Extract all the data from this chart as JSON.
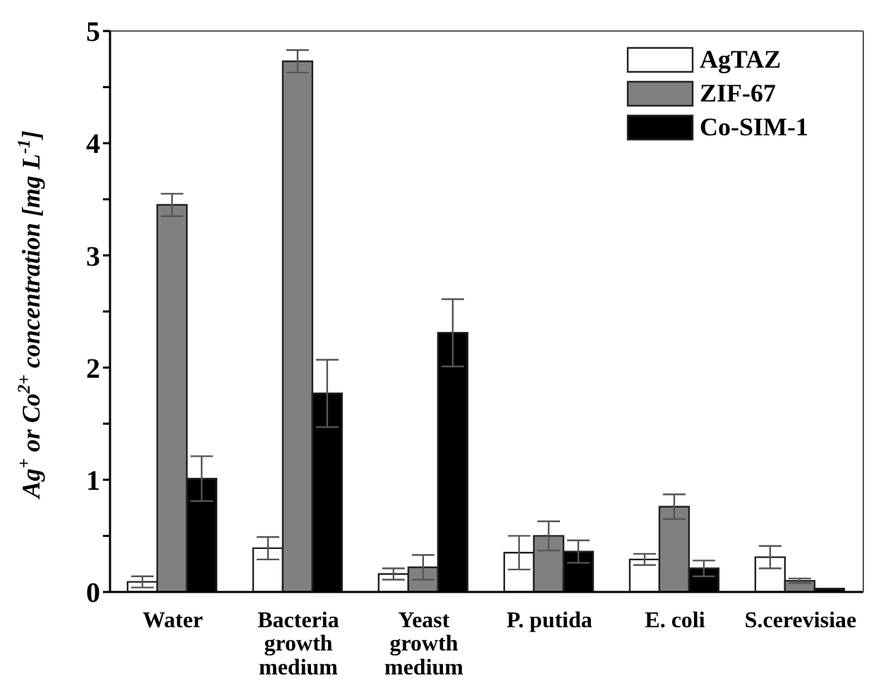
{
  "chart_data": {
    "type": "bar",
    "ylabel": "Ag$^{+}$ or Co$^{2+}$ concentration [mg L$^{-1}$]",
    "categories": [
      "Water",
      "Bacteria growth medium",
      "Yeast growth medium",
      "P. putida",
      "E. coli",
      "S.cerevisiae"
    ],
    "series": [
      {
        "name": "AgTAZ",
        "color": "#ffffff",
        "values": [
          0.09,
          0.39,
          0.16,
          0.35,
          0.29,
          0.31
        ],
        "errors": [
          0.05,
          0.1,
          0.05,
          0.15,
          0.05,
          0.1
        ]
      },
      {
        "name": "ZIF-67",
        "color": "#808080",
        "values": [
          3.45,
          4.73,
          0.22,
          0.5,
          0.76,
          0.1
        ],
        "errors": [
          0.1,
          0.1,
          0.11,
          0.13,
          0.11,
          0.02
        ]
      },
      {
        "name": "Co-SIM-1",
        "color": "#000000",
        "values": [
          1.01,
          1.77,
          2.31,
          0.36,
          0.21,
          0.03
        ],
        "errors": [
          0.2,
          0.3,
          0.3,
          0.1,
          0.07,
          null
        ]
      }
    ],
    "ylim": [
      0,
      5
    ],
    "yticks": [
      0,
      {
        "value": 0.5,
        "label": null
      },
      1,
      {
        "value": 1.5,
        "label": null
      },
      2,
      {
        "value": 2.5,
        "label": null
      },
      3,
      {
        "value": 3.5,
        "label": null
      },
      4,
      {
        "value": 4.5,
        "label": null
      },
      5
    ],
    "legend": "top right",
    "grid": false
  }
}
